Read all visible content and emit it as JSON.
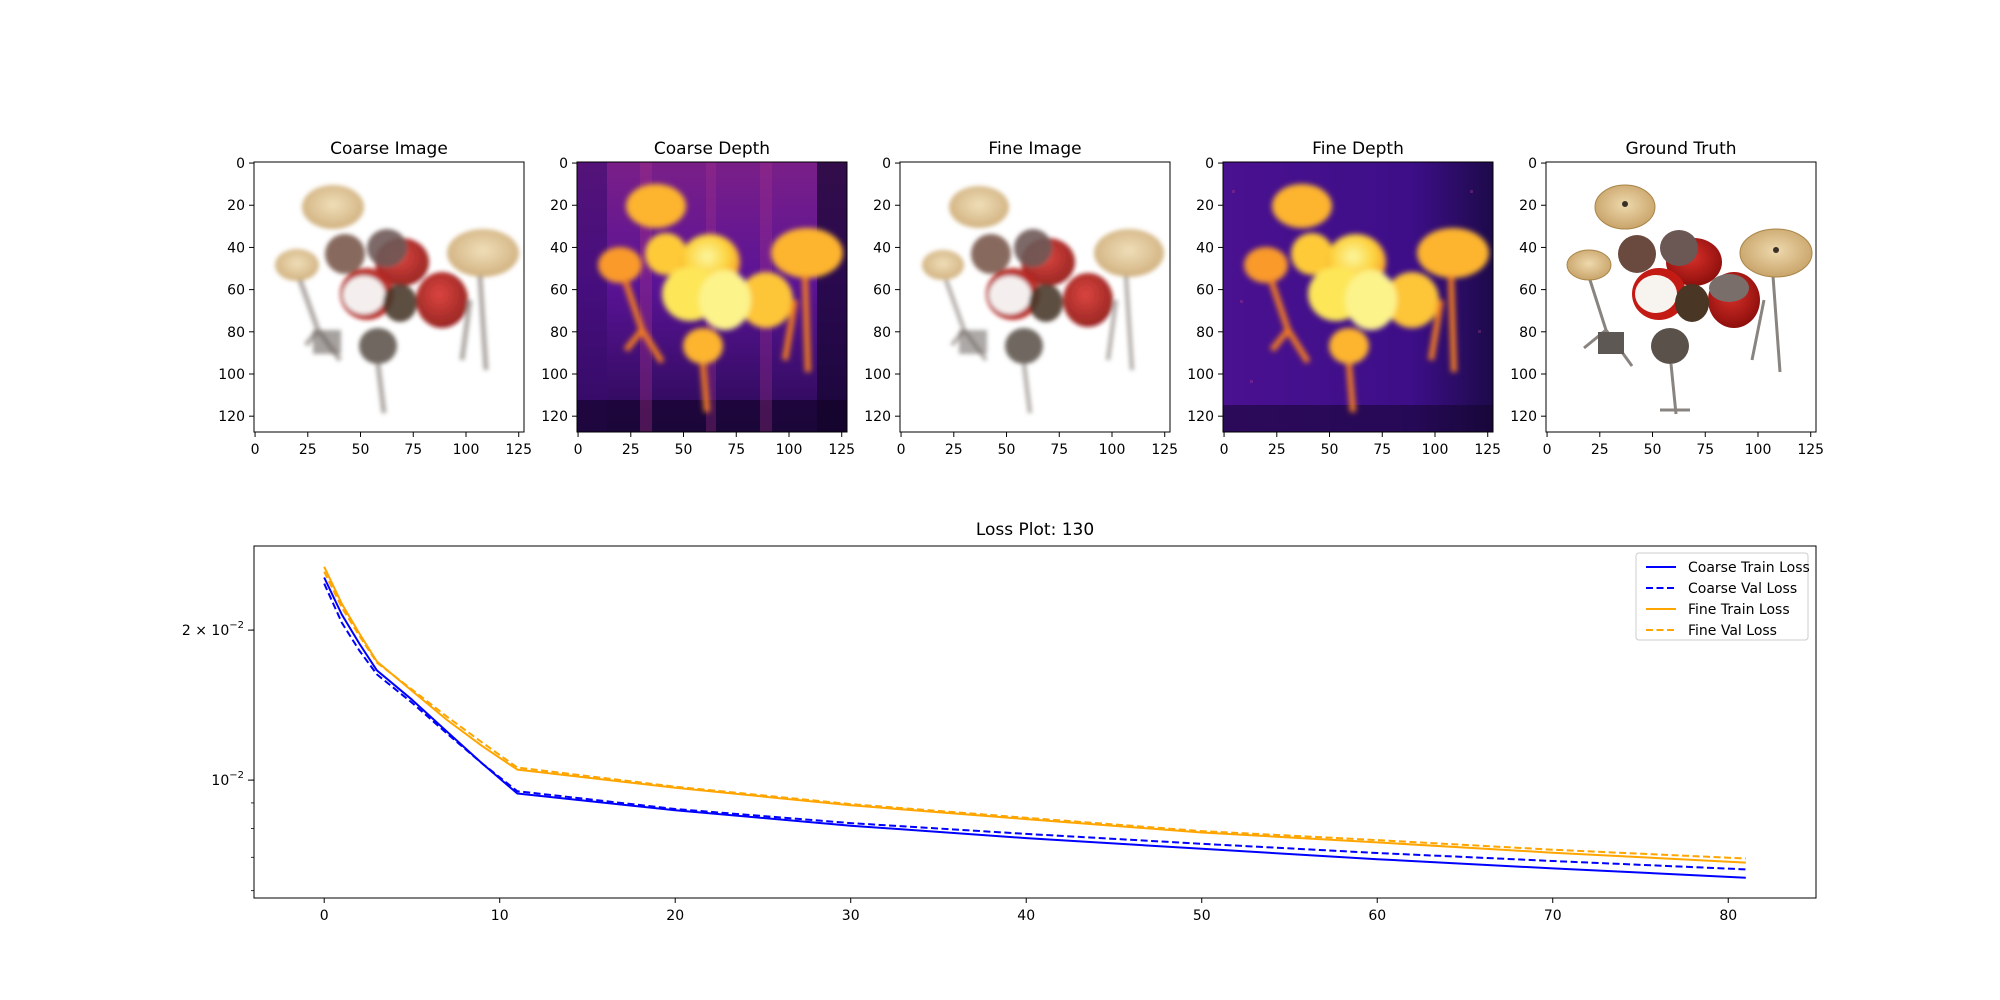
{
  "panels": [
    {
      "title": "Coarse Image",
      "kind": "rgb-render"
    },
    {
      "title": "Coarse Depth",
      "kind": "depth-map"
    },
    {
      "title": "Fine Image",
      "kind": "rgb-render"
    },
    {
      "title": "Fine Depth",
      "kind": "depth-map"
    },
    {
      "title": "Ground Truth",
      "kind": "rgb-truth"
    }
  ],
  "image_axes": {
    "x_ticks": [
      "0",
      "25",
      "50",
      "75",
      "100",
      "125"
    ],
    "y_ticks": [
      "0",
      "20",
      "40",
      "60",
      "80",
      "100",
      "120"
    ]
  },
  "colors": {
    "coarse": "#0000ff",
    "fine": "#ffa500",
    "depth_low": "#0d0887",
    "depth_high": "#fcffa4",
    "drum_red": "#c41a14",
    "cymbal": "#d8bb86"
  },
  "chart_data": {
    "type": "line",
    "title": "Loss Plot: 130",
    "xlabel": "",
    "ylabel": "",
    "yscale": "log",
    "xlim": [
      -4,
      85
    ],
    "ylim": [
      0.0058,
      0.0295
    ],
    "x_ticks": [
      0,
      10,
      20,
      30,
      40,
      50,
      60,
      70,
      80
    ],
    "y_ticks": [
      {
        "value": 0.02,
        "base": "2 × 10",
        "exp": "−2"
      },
      {
        "value": 0.01,
        "base": "10",
        "exp": "−2"
      }
    ],
    "legend_position": "top-right",
    "x": [
      0,
      1,
      2,
      3,
      5,
      7,
      9,
      11,
      20,
      30,
      40,
      50,
      60,
      70,
      81
    ],
    "series": [
      {
        "name": "Coarse Train Loss",
        "color": "#0000ff",
        "style": "solid",
        "values": [
          0.0255,
          0.0215,
          0.0188,
          0.0166,
          0.0145,
          0.0125,
          0.0108,
          0.0094,
          0.0087,
          0.0081,
          0.00765,
          0.00728,
          0.00694,
          0.00665,
          0.00637
        ]
      },
      {
        "name": "Coarse Val Loss",
        "color": "#0000ff",
        "style": "dashed",
        "values": [
          0.0248,
          0.0207,
          0.0182,
          0.0163,
          0.0143,
          0.0124,
          0.0108,
          0.0095,
          0.00875,
          0.0082,
          0.0078,
          0.00745,
          0.00714,
          0.00688,
          0.00662
        ]
      },
      {
        "name": "Fine Train Loss",
        "color": "#ffa500",
        "style": "solid",
        "values": [
          0.0268,
          0.0226,
          0.0197,
          0.0173,
          0.0151,
          0.0132,
          0.0117,
          0.0105,
          0.00965,
          0.0089,
          0.00835,
          0.00785,
          0.0075,
          0.00715,
          0.00683
        ]
      },
      {
        "name": "Fine Val Loss",
        "color": "#ffa500",
        "style": "dashed",
        "values": [
          0.0262,
          0.0222,
          0.0195,
          0.0172,
          0.0152,
          0.0134,
          0.0119,
          0.0106,
          0.0097,
          0.00895,
          0.0084,
          0.0079,
          0.00758,
          0.00725,
          0.00696
        ]
      }
    ]
  }
}
